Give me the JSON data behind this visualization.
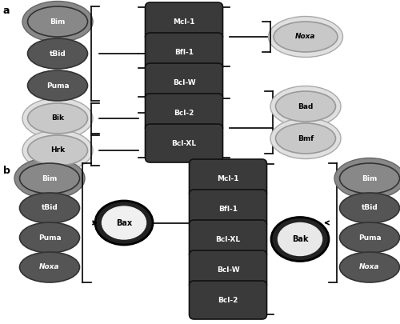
{
  "bg_color": "#ffffff",
  "panel_a_label": "a",
  "panel_b_label": "b",
  "strong_bh3_color": "#555555",
  "strong_bh3_edge": "#333333",
  "strong_bh3_ring": "#888888",
  "weak_bh3_color": "#cccccc",
  "weak_bh3_edge": "#999999",
  "weak_bh3_ring": "#e8e8e8",
  "prosurvival_color": "#3a3a3a",
  "prosurvival_edge": "#111111",
  "bax_inner": "#f0f0f0",
  "bax_outer": "#222222",
  "bak_inner": "#e8e8e8",
  "bak_outer": "#222222",
  "noxa_italic": true,
  "a_strong_bh3": [
    "Bim",
    "tBid",
    "Puma"
  ],
  "a_weak_bh3_left": [
    "Bik",
    "Hrk"
  ],
  "a_prosurvival": [
    "Mcl-1",
    "Bfl-1",
    "Bcl-W",
    "Bcl-2",
    "Bcl-XL"
  ],
  "a_noxa": "Noxa",
  "a_weak_right": [
    "Bad",
    "Bmf"
  ],
  "b_left": [
    "Bim",
    "tBid",
    "Puma",
    "Noxa"
  ],
  "b_prosurvival": [
    "Mcl-1",
    "Bfl-1",
    "Bcl-XL",
    "Bcl-W",
    "Bcl-2"
  ],
  "b_bax": "Bax",
  "b_bak": "Bak",
  "b_right": [
    "Bim",
    "tBid",
    "Puma",
    "Noxa"
  ]
}
